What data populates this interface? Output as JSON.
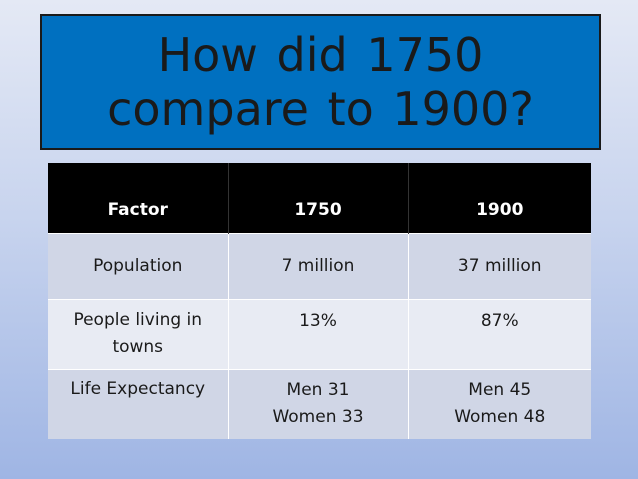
{
  "title": {
    "line1": "How did 1750",
    "line2": "compare to 1900?"
  },
  "table": {
    "headers": [
      "Factor",
      "1750",
      "1900"
    ],
    "rows": [
      {
        "factor": [
          "Population"
        ],
        "y1750": [
          "7 million"
        ],
        "y1900": [
          "37 million"
        ]
      },
      {
        "factor": [
          "People living in",
          "towns"
        ],
        "y1750": [
          "13%"
        ],
        "y1900": [
          "87%"
        ]
      },
      {
        "factor": [
          "Life Expectancy"
        ],
        "y1750": [
          "Men 31",
          "Women 33"
        ],
        "y1900": [
          "Men 45",
          "Women 48"
        ]
      }
    ]
  },
  "colors": {
    "title_bg": "#0070c0",
    "header_bg": "#000000",
    "row_a": "#d0d6e6",
    "row_b": "#e8ebf3"
  }
}
